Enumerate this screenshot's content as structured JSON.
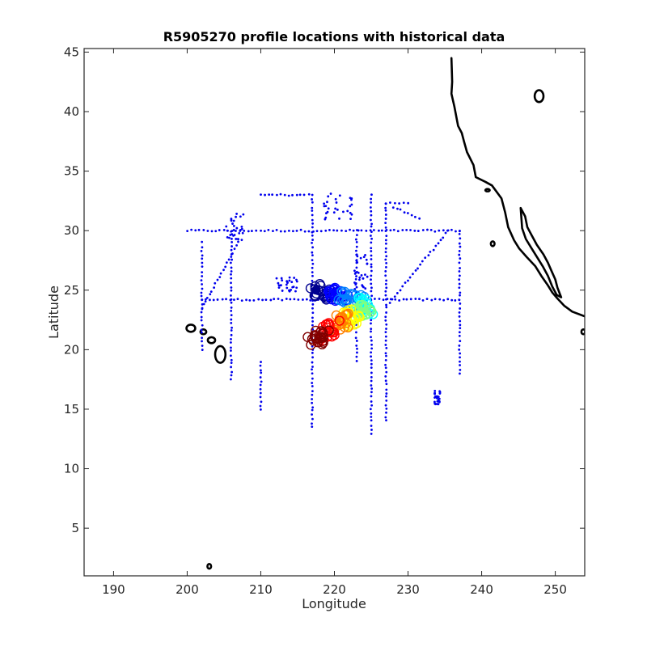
{
  "chart_data": {
    "type": "scatter",
    "title": "R5905270 profile locations with historical data",
    "xlabel": "Longitude",
    "ylabel": "Latitude",
    "xlim": [
      186,
      254
    ],
    "ylim": [
      1,
      45.3
    ],
    "xticks": [
      190,
      200,
      210,
      220,
      230,
      240,
      250
    ],
    "yticks": [
      5,
      10,
      15,
      20,
      25,
      30,
      35,
      40,
      45
    ],
    "grid": false,
    "legend": "none",
    "colors": {
      "historical": "#0000ee",
      "coastline": "#000000",
      "float_track_scale": [
        "#00008f",
        "#0000ff",
        "#0080ff",
        "#00ffff",
        "#80ff80",
        "#ffff00",
        "#ff8000",
        "#ff0000",
        "#800000"
      ]
    },
    "historical_transects": [
      {
        "from": [
          200,
          30
        ],
        "to": [
          237,
          30
        ]
      },
      {
        "from": [
          202,
          24.2
        ],
        "to": [
          237,
          24.2
        ]
      },
      {
        "from": [
          217,
          33
        ],
        "to": [
          217,
          13.5
        ]
      },
      {
        "from": [
          225,
          33
        ],
        "to": [
          225,
          13
        ]
      },
      {
        "from": [
          227,
          32.3
        ],
        "to": [
          227,
          14
        ]
      },
      {
        "from": [
          237,
          30
        ],
        "to": [
          237,
          18
        ]
      },
      {
        "from": [
          206,
          30
        ],
        "to": [
          206,
          17.5
        ]
      },
      {
        "from": [
          202,
          29
        ],
        "to": [
          202,
          20
        ]
      },
      {
        "from": [
          210,
          19
        ],
        "to": [
          210,
          15
        ]
      },
      {
        "from": [
          223,
          30
        ],
        "to": [
          223,
          19
        ]
      },
      {
        "from": [
          227.5,
          24
        ],
        "to": [
          235.5,
          30
        ]
      },
      {
        "from": [
          210,
          33
        ],
        "to": [
          216.5,
          33
        ]
      },
      {
        "from": [
          227,
          32.3
        ],
        "to": [
          230,
          32.3
        ]
      },
      {
        "from": [
          228,
          32
        ],
        "to": [
          231.5,
          31
        ]
      },
      {
        "from": [
          202,
          23.5
        ],
        "to": [
          207,
          29
        ]
      }
    ],
    "historical_clusters": [
      {
        "center": [
          206.5,
          30.3
        ],
        "spread": [
          1.2,
          1.2
        ]
      },
      {
        "center": [
          220.5,
          32
        ],
        "spread": [
          2,
          1.2
        ]
      },
      {
        "center": [
          213.5,
          25.5
        ],
        "spread": [
          1.6,
          0.6
        ]
      },
      {
        "center": [
          234,
          16
        ],
        "spread": [
          0.4,
          0.6
        ]
      },
      {
        "center": [
          223.5,
          26.5
        ],
        "spread": [
          1,
          1.5
        ]
      }
    ],
    "float_track": {
      "start": [
        217.5,
        25.0
      ],
      "waypoints": [
        [
          217.5,
          25.0
        ],
        [
          219.0,
          24.8
        ],
        [
          221.0,
          24.5
        ],
        [
          223.5,
          24.0
        ],
        [
          224.5,
          23.5
        ],
        [
          223.0,
          23.0
        ],
        [
          221.5,
          22.5
        ],
        [
          220.0,
          22.0
        ],
        [
          218.5,
          21.2
        ],
        [
          217.0,
          20.8
        ]
      ],
      "count": 190
    },
    "coastline_na": [
      [
        235.9,
        44.5
      ],
      [
        236.0,
        42.5
      ],
      [
        235.9,
        41.5
      ],
      [
        236.3,
        40.4
      ],
      [
        236.8,
        38.8
      ],
      [
        237.3,
        38.2
      ],
      [
        237.6,
        37.5
      ],
      [
        238.0,
        36.6
      ],
      [
        238.9,
        35.5
      ],
      [
        239.2,
        34.5
      ],
      [
        240.5,
        34.1
      ],
      [
        241.4,
        33.8
      ],
      [
        242.7,
        32.7
      ],
      [
        243.2,
        31.5
      ],
      [
        243.6,
        30.3
      ],
      [
        244.4,
        29.2
      ],
      [
        245.1,
        28.5
      ],
      [
        246.1,
        27.8
      ],
      [
        247.3,
        27.0
      ],
      [
        248.1,
        26.2
      ],
      [
        249.0,
        25.4
      ],
      [
        249.6,
        24.8
      ],
      [
        250.3,
        24.3
      ],
      [
        251.2,
        23.7
      ],
      [
        252.3,
        23.2
      ],
      [
        254,
        22.8
      ]
    ],
    "coastline_baja": [
      [
        245.3,
        31.9
      ],
      [
        245.9,
        31.2
      ],
      [
        246.2,
        30.3
      ],
      [
        246.8,
        29.6
      ],
      [
        247.5,
        28.8
      ],
      [
        248.4,
        28.0
      ],
      [
        249.0,
        27.3
      ],
      [
        249.5,
        26.6
      ],
      [
        250.0,
        25.9
      ],
      [
        250.3,
        25.2
      ],
      [
        250.8,
        24.4
      ],
      [
        250.2,
        24.6
      ],
      [
        249.6,
        25.3
      ],
      [
        249.0,
        26.2
      ],
      [
        248.3,
        27.0
      ],
      [
        247.5,
        27.8
      ],
      [
        246.7,
        28.6
      ],
      [
        246.0,
        29.3
      ],
      [
        245.5,
        30.2
      ],
      [
        245.3,
        31.9
      ]
    ],
    "islands": [
      {
        "center": [
          204.5,
          19.6
        ],
        "r": [
          0.7,
          0.7
        ]
      },
      {
        "center": [
          203.3,
          20.8
        ],
        "r": [
          0.5,
          0.25
        ]
      },
      {
        "center": [
          200.5,
          21.8
        ],
        "r": [
          0.6,
          0.3
        ]
      },
      {
        "center": [
          202.2,
          21.5
        ],
        "r": [
          0.4,
          0.2
        ]
      },
      {
        "center": [
          203.0,
          1.8
        ],
        "r": [
          0.25,
          0.2
        ]
      },
      {
        "center": [
          247.8,
          41.3
        ],
        "r": [
          0.6,
          0.5
        ]
      },
      {
        "center": [
          241.5,
          28.9
        ],
        "r": [
          0.25,
          0.2
        ]
      },
      {
        "center": [
          240.8,
          33.4
        ],
        "r": [
          0.3,
          0.1
        ]
      },
      {
        "center": [
          253.8,
          21.5
        ],
        "r": [
          0.25,
          0.2
        ]
      }
    ]
  }
}
